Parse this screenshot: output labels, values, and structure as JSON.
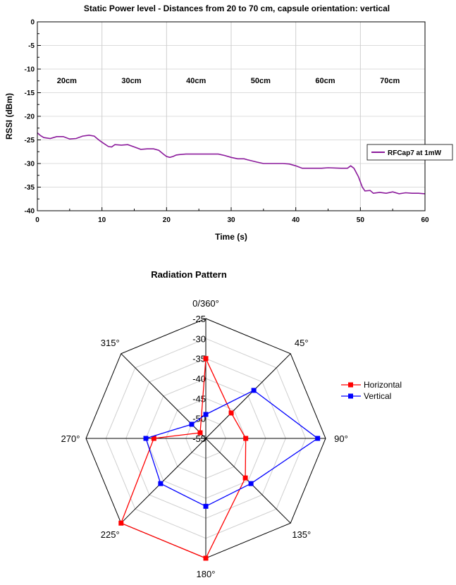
{
  "chart_data": [
    {
      "type": "line",
      "title": "Static Power level - Distances from 20 to 70 cm, capsule orientation: vertical",
      "xlabel": "Time (s)",
      "ylabel": "RSSI (dBm)",
      "xlim": [
        0,
        60
      ],
      "ylim": [
        -40,
        0
      ],
      "x_ticks": [
        "0",
        "10",
        "20",
        "30",
        "40",
        "50",
        "60"
      ],
      "y_ticks": [
        "0",
        "-5",
        "-10",
        "-15",
        "-20",
        "-25",
        "-30",
        "-35",
        "-40"
      ],
      "grid": "vertical at segment boundaries and horizontal at ticks",
      "segment_boundaries": [
        10,
        20,
        30,
        40,
        50
      ],
      "segment_labels": [
        "20cm",
        "30cm",
        "40cm",
        "50cm",
        "60cm",
        "70cm"
      ],
      "legend_position": "right",
      "series": [
        {
          "name": "RFCap7 at 1mW",
          "color": "#8B1A9B",
          "points": [
            [
              0,
              -23.5
            ],
            [
              0.5,
              -24.1
            ],
            [
              1,
              -24.5
            ],
            [
              2,
              -24.7
            ],
            [
              3,
              -24.3
            ],
            [
              4,
              -24.3
            ],
            [
              5,
              -24.8
            ],
            [
              6,
              -24.7
            ],
            [
              7,
              -24.2
            ],
            [
              8,
              -24.0
            ],
            [
              8.8,
              -24.2
            ],
            [
              9.5,
              -25.0
            ],
            [
              10,
              -25.5
            ],
            [
              11,
              -26.4
            ],
            [
              11.5,
              -26.5
            ],
            [
              12,
              -26.0
            ],
            [
              13,
              -26.1
            ],
            [
              14,
              -26.0
            ],
            [
              15,
              -26.5
            ],
            [
              16,
              -27.0
            ],
            [
              17,
              -26.9
            ],
            [
              18,
              -26.9
            ],
            [
              18.8,
              -27.2
            ],
            [
              19.5,
              -28.0
            ],
            [
              20,
              -28.5
            ],
            [
              20.5,
              -28.7
            ],
            [
              21,
              -28.5
            ],
            [
              21.5,
              -28.2
            ],
            [
              22,
              -28.1
            ],
            [
              23,
              -28.0
            ],
            [
              25,
              -28.0
            ],
            [
              27,
              -28.0
            ],
            [
              28,
              -28.0
            ],
            [
              29,
              -28.3
            ],
            [
              30,
              -28.7
            ],
            [
              31,
              -29.0
            ],
            [
              32,
              -29.0
            ],
            [
              32.5,
              -29.2
            ],
            [
              34,
              -29.7
            ],
            [
              35,
              -30.0
            ],
            [
              36,
              -30.0
            ],
            [
              38,
              -30.0
            ],
            [
              39,
              -30.1
            ],
            [
              40,
              -30.5
            ],
            [
              41,
              -31.0
            ],
            [
              42,
              -31.0
            ],
            [
              44,
              -31.0
            ],
            [
              45,
              -30.9
            ],
            [
              47,
              -31.0
            ],
            [
              48,
              -31.0
            ],
            [
              48.5,
              -30.5
            ],
            [
              49,
              -31.0
            ],
            [
              49.7,
              -32.8
            ],
            [
              50.3,
              -35.0
            ],
            [
              50.7,
              -35.8
            ],
            [
              51.5,
              -35.7
            ],
            [
              52,
              -36.3
            ],
            [
              53,
              -36.1
            ],
            [
              54,
              -36.3
            ],
            [
              55,
              -36.0
            ],
            [
              56,
              -36.4
            ],
            [
              57,
              -36.2
            ],
            [
              58,
              -36.3
            ],
            [
              59,
              -36.3
            ],
            [
              60,
              -36.4
            ]
          ]
        }
      ]
    },
    {
      "type": "radar",
      "title": "Radiation Pattern",
      "axis_labels": [
        "0/360°",
        "45°",
        "90°",
        "135°",
        "180°",
        "225°",
        "270°",
        "315°"
      ],
      "ring_labels": [
        "-25",
        "-30",
        "-35",
        "-40",
        "-45",
        "-50",
        "-55"
      ],
      "rlim": [
        -55,
        -25
      ],
      "legend_position": "right",
      "series": [
        {
          "name": "Horizontal",
          "color": "#FF0000",
          "values": [
            -35,
            -46,
            -45,
            -41,
            -25,
            -25,
            -42,
            -53
          ]
        },
        {
          "name": "Vertical",
          "color": "#0000FF",
          "values": [
            -49,
            -38,
            -27,
            -39,
            -38,
            -39,
            -40,
            -50
          ]
        }
      ]
    }
  ]
}
